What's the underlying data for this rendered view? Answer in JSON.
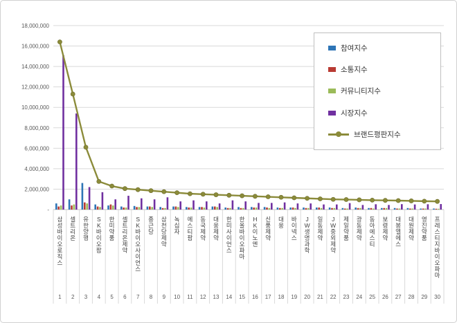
{
  "chart_data": {
    "type": "bar",
    "subtype": "grouped-bars-with-line-overlay",
    "title": "",
    "categories": [
      "삼성바이오로직스",
      "셀트리온",
      "유한양행",
      "SK바이오팜",
      "한미약품",
      "셀트리온제약",
      "SK바이오사이언스",
      "종근당",
      "삼천당제약",
      "녹십자",
      "에스티팜",
      "동국제약",
      "대웅제약",
      "한미사이언스",
      "한올바이오파마",
      "HK이노엔",
      "신풍제약",
      "대웅",
      "바이넥스",
      "JW생명과학",
      "일동제약",
      "JW중외제약",
      "제일약품",
      "광동제약",
      "동아에스티",
      "보령제약",
      "대봉엘에스",
      "대원제약",
      "영진약품",
      "프레스티지바이오파마"
    ],
    "category_numbers": [
      "1",
      "2",
      "3",
      "4",
      "5",
      "6",
      "7",
      "8",
      "9",
      "10",
      "11",
      "12",
      "13",
      "14",
      "15",
      "16",
      "17",
      "18",
      "19",
      "20",
      "21",
      "22",
      "23",
      "24",
      "25",
      "26",
      "27",
      "28",
      "29",
      "30"
    ],
    "series": [
      {
        "name": "참여지수",
        "type": "bar",
        "color": "#2e75b6",
        "values": [
          600000,
          1000000,
          2600000,
          500000,
          400000,
          300000,
          350000,
          300000,
          250000,
          300000,
          250000,
          250000,
          300000,
          200000,
          250000,
          250000,
          250000,
          200000,
          200000,
          200000,
          200000,
          200000,
          150000,
          200000,
          150000,
          150000,
          150000,
          150000,
          100000,
          100000
        ]
      },
      {
        "name": "소통지수",
        "type": "bar",
        "color": "#b93b33",
        "values": [
          300000,
          400000,
          700000,
          300000,
          500000,
          200000,
          250000,
          300000,
          150000,
          300000,
          200000,
          250000,
          300000,
          150000,
          150000,
          200000,
          200000,
          150000,
          200000,
          150000,
          200000,
          150000,
          100000,
          150000,
          150000,
          150000,
          100000,
          100000,
          100000,
          80000
        ]
      },
      {
        "name": "커뮤니티지수",
        "type": "bar",
        "color": "#9bbb59",
        "values": [
          400000,
          500000,
          600000,
          250000,
          400000,
          200000,
          250000,
          250000,
          150000,
          250000,
          200000,
          200000,
          250000,
          150000,
          150000,
          200000,
          150000,
          150000,
          150000,
          150000,
          150000,
          150000,
          100000,
          150000,
          100000,
          150000,
          100000,
          100000,
          100000,
          80000
        ]
      },
      {
        "name": "시장지수",
        "type": "bar",
        "color": "#7030a0",
        "values": [
          15100000,
          9400000,
          2200000,
          1700000,
          1000000,
          1350000,
          1100000,
          1000000,
          1200000,
          800000,
          900000,
          800000,
          600000,
          900000,
          800000,
          650000,
          650000,
          700000,
          600000,
          600000,
          500000,
          500000,
          630000,
          450000,
          520000,
          450000,
          530000,
          500000,
          520000,
          540000
        ]
      },
      {
        "name": "브랜드평판지수",
        "type": "line",
        "color": "#8b8b3a",
        "values": [
          16400000,
          11300000,
          6100000,
          2750000,
          2300000,
          2050000,
          1950000,
          1850000,
          1750000,
          1650000,
          1550000,
          1500000,
          1450000,
          1400000,
          1350000,
          1300000,
          1250000,
          1200000,
          1150000,
          1100000,
          1050000,
          1000000,
          980000,
          950000,
          920000,
          900000,
          880000,
          850000,
          820000,
          800000
        ]
      }
    ],
    "y_axis": {
      "min": 0,
      "max": 18000000,
      "step": 2000000,
      "tick_labels": [
        "18,000,000",
        "16,000,000",
        "14,000,000",
        "12,000,000",
        "10,000,000",
        "8,000,000",
        "6,000,000",
        "4,000,000",
        "2,000,000",
        "-"
      ]
    },
    "legend_position": "right-top",
    "grid": true,
    "colors": {
      "gridline": "#d9d9d9",
      "axis": "#bfbfbf",
      "tick_text": "#595959",
      "label_text": "#404040"
    }
  }
}
